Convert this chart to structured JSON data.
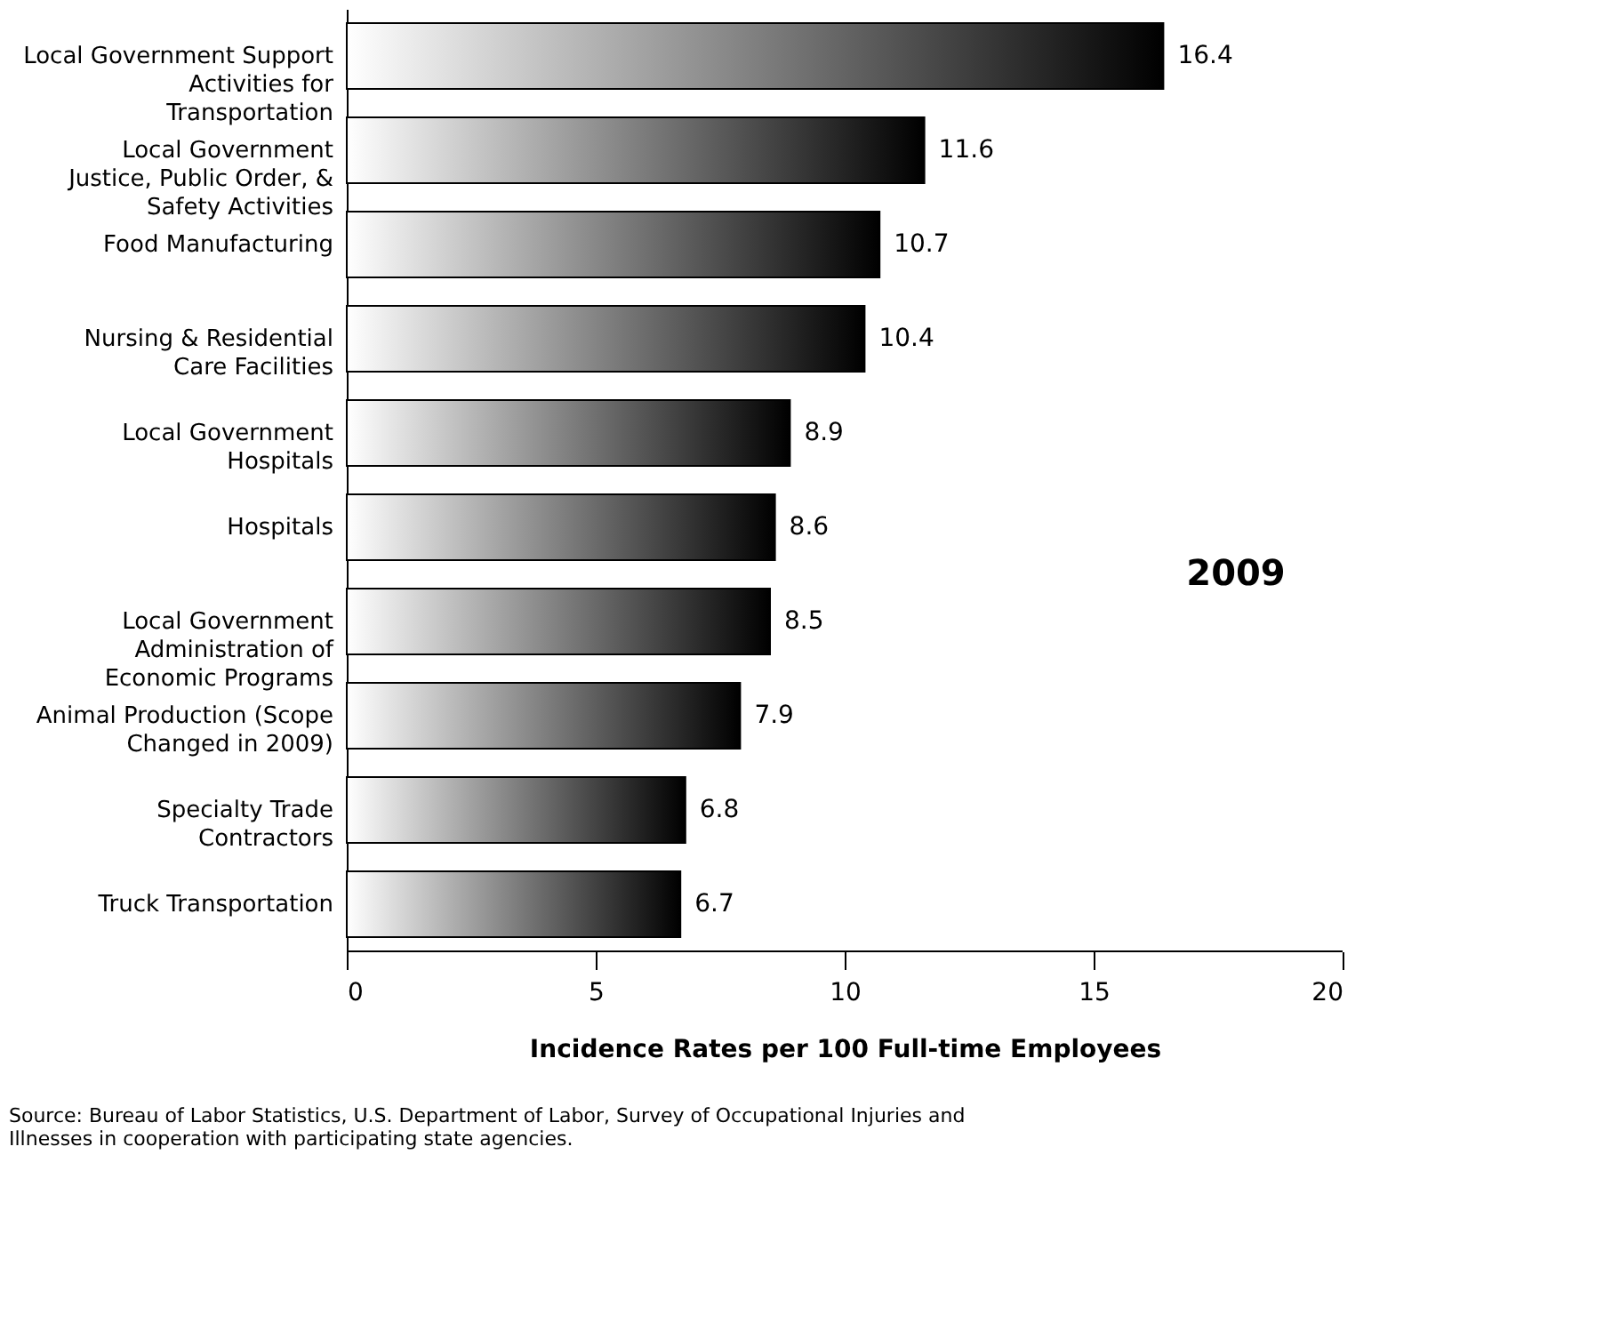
{
  "chart_data": {
    "type": "bar",
    "orientation": "horizontal",
    "xlabel": "Incidence Rates per 100 Full-time Employees",
    "categories": [
      "Local Government Support Activities for Transportation",
      "Local Government Justice, Public Order, & Safety Activities",
      "Food Manufacturing",
      "Nursing & Residential Care Facilities",
      "Local Government Hospitals",
      "Hospitals",
      "Local Government Administration of Economic Programs",
      "Animal Production (Scope Changed in 2009)",
      "Specialty Trade Contractors",
      "Truck Transportation"
    ],
    "values": [
      16.4,
      11.6,
      10.7,
      10.4,
      8.9,
      8.6,
      8.5,
      7.9,
      6.8,
      6.7
    ],
    "color": "#000000",
    "data_labels": true,
    "xlim": [
      0,
      20
    ],
    "xticks": [
      0,
      5,
      10,
      15,
      20
    ],
    "grid": false,
    "annotations": [
      "2009",
      "Source: Bureau of Labor Statistics, U.S. Department of Labor, Survey of Occupational Injuries and Illnesses in cooperation with participating state agencies."
    ]
  }
}
